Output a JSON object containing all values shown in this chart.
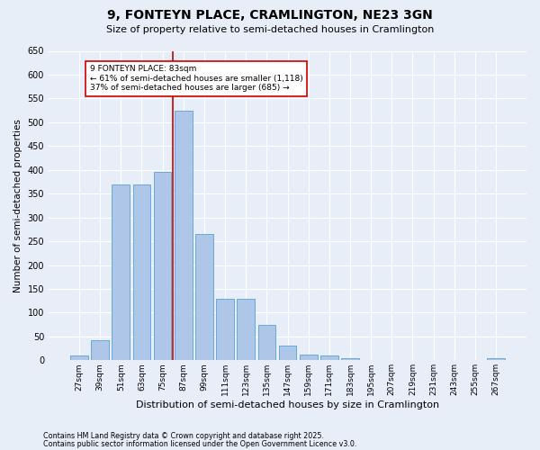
{
  "title": "9, FONTEYN PLACE, CRAMLINGTON, NE23 3GN",
  "subtitle": "Size of property relative to semi-detached houses in Cramlington",
  "xlabel": "Distribution of semi-detached houses by size in Cramlington",
  "ylabel": "Number of semi-detached properties",
  "footnote1": "Contains HM Land Registry data © Crown copyright and database right 2025.",
  "footnote2": "Contains public sector information licensed under the Open Government Licence v3.0.",
  "bar_labels": [
    "27sqm",
    "39sqm",
    "51sqm",
    "63sqm",
    "75sqm",
    "87sqm",
    "99sqm",
    "111sqm",
    "123sqm",
    "135sqm",
    "147sqm",
    "159sqm",
    "171sqm",
    "183sqm",
    "195sqm",
    "207sqm",
    "219sqm",
    "231sqm",
    "243sqm",
    "255sqm",
    "267sqm"
  ],
  "bar_values": [
    10,
    42,
    370,
    370,
    395,
    525,
    265,
    130,
    130,
    75,
    30,
    12,
    10,
    5,
    0,
    0,
    0,
    0,
    0,
    0,
    5
  ],
  "bar_color": "#aec6e8",
  "bar_edge_color": "#5a9fd4",
  "background_color": "#e8eef8",
  "grid_color": "#ffffff",
  "vline_index": 5,
  "vline_color": "#cc0000",
  "annotation_title": "9 FONTEYN PLACE: 83sqm",
  "annotation_line1": "← 61% of semi-detached houses are smaller (1,118)",
  "annotation_line2": "37% of semi-detached houses are larger (685) →",
  "annotation_box_color": "#ffffff",
  "annotation_border_color": "#cc0000",
  "ylim": [
    0,
    650
  ],
  "yticks": [
    0,
    50,
    100,
    150,
    200,
    250,
    300,
    350,
    400,
    450,
    500,
    550,
    600,
    650
  ]
}
